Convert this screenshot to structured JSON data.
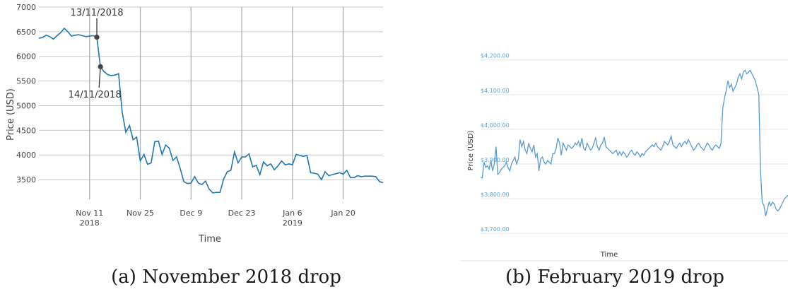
{
  "figure": {
    "caption_a": "(a) November 2018 drop",
    "caption_b": "(b) February 2019 drop"
  },
  "chart_data": [
    {
      "type": "line",
      "xlabel": "Time",
      "ylabel": "Price (USD)",
      "ylim": [
        3100,
        7000
      ],
      "yticks": [
        3500,
        4000,
        4500,
        5000,
        5500,
        6000,
        6500,
        7000
      ],
      "xlim": [
        "2018-10-28",
        "2019-01-31"
      ],
      "xticks": [
        {
          "date": "2018-11-11",
          "label": "Nov 11",
          "sublabel": "2018"
        },
        {
          "date": "2018-11-25",
          "label": "Nov 25",
          "sublabel": ""
        },
        {
          "date": "2018-12-09",
          "label": "Dec 9",
          "sublabel": ""
        },
        {
          "date": "2018-12-23",
          "label": "Dec 23",
          "sublabel": ""
        },
        {
          "date": "2019-01-06",
          "label": "Jan 6",
          "sublabel": "2019"
        },
        {
          "date": "2019-01-20",
          "label": "Jan 20",
          "sublabel": ""
        }
      ],
      "grid": true,
      "color": "#1f77b4",
      "series": [
        {
          "x": [
            "2018-10-28",
            "2018-10-29",
            "2018-10-30",
            "2018-10-31",
            "2018-11-01",
            "2018-11-02",
            "2018-11-03",
            "2018-11-04",
            "2018-11-05",
            "2018-11-06",
            "2018-11-07",
            "2018-11-08",
            "2018-11-09",
            "2018-11-10",
            "2018-11-11",
            "2018-11-12",
            "2018-11-13",
            "2018-11-14",
            "2018-11-15",
            "2018-11-16",
            "2018-11-17",
            "2018-11-18",
            "2018-11-19",
            "2018-11-20",
            "2018-11-21",
            "2018-11-22",
            "2018-11-23",
            "2018-11-24",
            "2018-11-25",
            "2018-11-26",
            "2018-11-27",
            "2018-11-28",
            "2018-11-29",
            "2018-11-30",
            "2018-12-01",
            "2018-12-02",
            "2018-12-03",
            "2018-12-04",
            "2018-12-05",
            "2018-12-06",
            "2018-12-07",
            "2018-12-08",
            "2018-12-09",
            "2018-12-10",
            "2018-12-11",
            "2018-12-12",
            "2018-12-13",
            "2018-12-14",
            "2018-12-15",
            "2018-12-16",
            "2018-12-17",
            "2018-12-18",
            "2018-12-19",
            "2018-12-20",
            "2018-12-21",
            "2018-12-22",
            "2018-12-23",
            "2018-12-24",
            "2018-12-25",
            "2018-12-26",
            "2018-12-27",
            "2018-12-28",
            "2018-12-29",
            "2018-12-30",
            "2018-12-31",
            "2019-01-01",
            "2019-01-02",
            "2019-01-03",
            "2019-01-04",
            "2019-01-05",
            "2019-01-06",
            "2019-01-07",
            "2019-01-08",
            "2019-01-09",
            "2019-01-10",
            "2019-01-11",
            "2019-01-12",
            "2019-01-13",
            "2019-01-14",
            "2019-01-15",
            "2019-01-16",
            "2019-01-17",
            "2019-01-18",
            "2019-01-19",
            "2019-01-20",
            "2019-01-21",
            "2019-01-22",
            "2019-01-23",
            "2019-01-24",
            "2019-01-25",
            "2019-01-26",
            "2019-01-27",
            "2019-01-28",
            "2019-01-29",
            "2019-01-30",
            "2019-01-31"
          ],
          "y": [
            6370,
            6380,
            6430,
            6400,
            6350,
            6420,
            6480,
            6570,
            6500,
            6410,
            6430,
            6440,
            6420,
            6400,
            6410,
            6420,
            6390,
            5790,
            5690,
            5630,
            5610,
            5620,
            5650,
            4870,
            4460,
            4600,
            4310,
            4360,
            3880,
            4010,
            3810,
            3840,
            4270,
            4280,
            4010,
            4200,
            4140,
            3890,
            3960,
            3730,
            3460,
            3420,
            3430,
            3560,
            3430,
            3400,
            3470,
            3310,
            3230,
            3240,
            3240,
            3510,
            3660,
            3690,
            4060,
            3840,
            3960,
            3960,
            4020,
            3760,
            3790,
            3600,
            3860,
            3780,
            3820,
            3700,
            3780,
            3880,
            3800,
            3820,
            3800,
            4010,
            3990,
            3970,
            3990,
            3640,
            3630,
            3610,
            3500,
            3660,
            3580,
            3600,
            3620,
            3640,
            3610,
            3690,
            3540,
            3540,
            3580,
            3560,
            3570,
            3570,
            3570,
            3560,
            3460,
            3440
          ]
        }
      ],
      "annotations": [
        {
          "x": "2018-11-13",
          "y": 6390,
          "text": "13/11/2018"
        },
        {
          "x": "2018-11-14",
          "y": 5790,
          "text": "14/11/2018"
        }
      ]
    },
    {
      "type": "line",
      "xlabel": "Time",
      "ylabel": "Price (USD)",
      "ylim": [
        3680,
        4230
      ],
      "yticks": [
        {
          "value": 4200,
          "label": "$4,200.00"
        },
        {
          "value": 4100,
          "label": "$4,100.00"
        },
        {
          "value": 4000,
          "label": "$4,000.00"
        },
        {
          "value": 3900,
          "label": "$3,900.00"
        },
        {
          "value": 3800,
          "label": "$3,800.00"
        },
        {
          "value": 3700,
          "label": "$3,700.00"
        }
      ],
      "grid": true,
      "color": "#5b9bd5",
      "tick_color": "#5aa7d8",
      "series": [
        {
          "y": [
            3862,
            3860,
            3905,
            3890,
            3895,
            3885,
            3910,
            3880,
            3900,
            3950,
            3870,
            3875,
            3885,
            3890,
            3895,
            3905,
            3890,
            3880,
            3900,
            3910,
            3920,
            3900,
            3915,
            3970,
            3950,
            3965,
            3940,
            3930,
            3960,
            3945,
            3935,
            3955,
            3920,
            3930,
            3880,
            3915,
            3920,
            3905,
            3900,
            3910,
            3905,
            3900,
            3930,
            3930,
            3945,
            3975,
            3960,
            3925,
            3960,
            3950,
            3940,
            3955,
            3950,
            3945,
            3950,
            3960,
            3955,
            3965,
            3950,
            3975,
            3945,
            3940,
            3960,
            3950,
            3940,
            3945,
            3960,
            3975,
            3950,
            3940,
            3955,
            3960,
            3978,
            3950,
            3945,
            3940,
            3935,
            3930,
            3935,
            3940,
            3925,
            3935,
            3925,
            3935,
            3930,
            3920,
            3925,
            3935,
            3940,
            3930,
            3925,
            3935,
            3930,
            3920,
            3930,
            3925,
            3935,
            3940,
            3945,
            3950,
            3955,
            3950,
            3960,
            3950,
            3945,
            3940,
            3950,
            3965,
            3960,
            3955,
            3965,
            3980,
            3955,
            3950,
            3945,
            3955,
            3960,
            3950,
            3960,
            3965,
            3958,
            3970,
            3960,
            3950,
            3940,
            3945,
            3955,
            3960,
            3950,
            3945,
            3940,
            3950,
            3960,
            3955,
            3945,
            3940,
            3950,
            3955,
            3950,
            3945,
            3960,
            4060,
            4090,
            4110,
            4140,
            4120,
            4130,
            4110,
            4120,
            4130,
            4150,
            4160,
            4145,
            4165,
            4170,
            4160,
            4165,
            4170,
            4160,
            4150,
            4140,
            4120,
            4100,
            3880,
            3790,
            3780,
            3750,
            3770,
            3790,
            3780,
            3790,
            3785,
            3770,
            3765,
            3770,
            3780,
            3790,
            3800,
            3805,
            3810
          ]
        }
      ]
    }
  ]
}
